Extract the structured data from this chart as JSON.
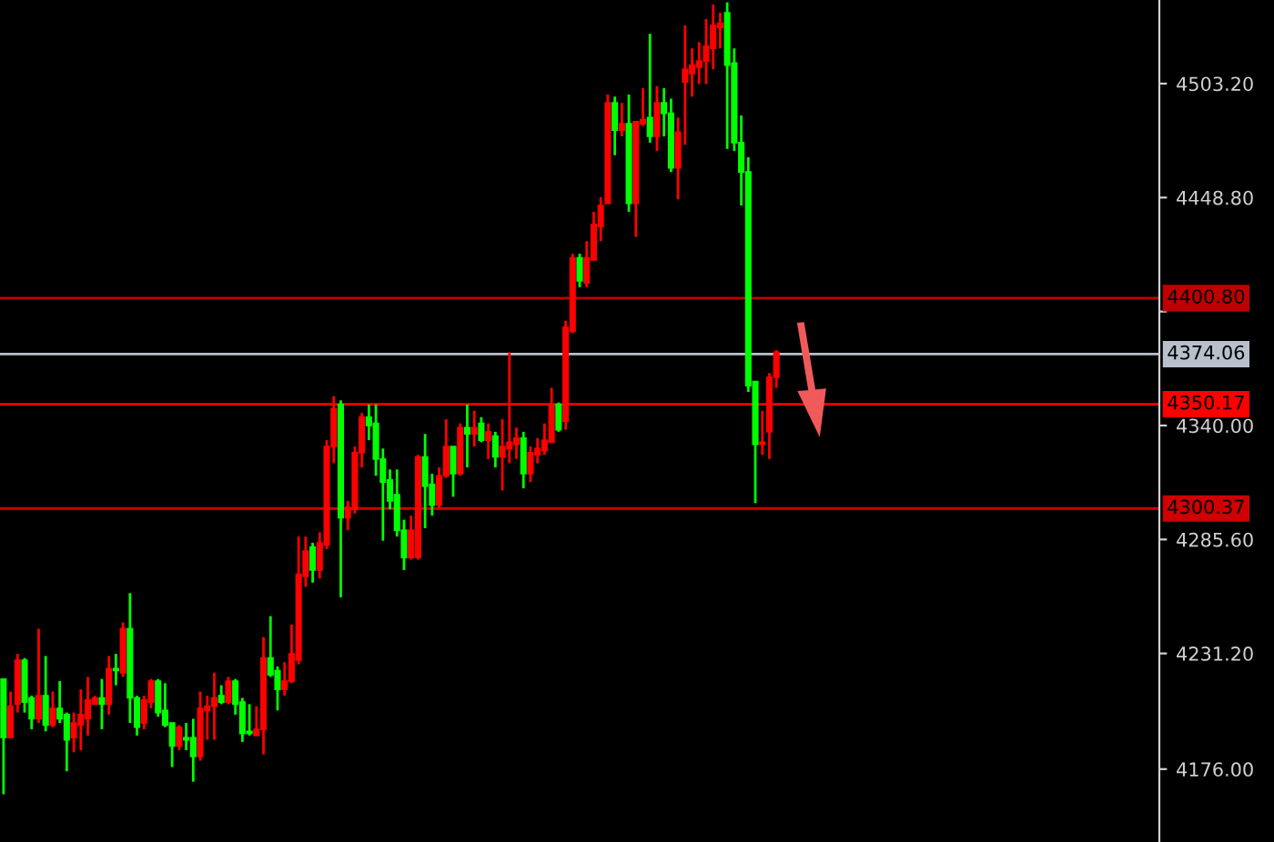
{
  "chart_data": {
    "type": "candlestick",
    "categories": [
      null,
      null,
      null,
      null,
      null,
      null,
      null,
      null,
      null,
      null,
      null,
      null,
      null,
      null,
      null,
      null,
      null,
      null,
      null,
      null,
      null,
      null,
      null,
      null,
      null,
      null,
      null,
      null,
      null,
      null,
      null,
      null,
      null,
      null,
      null,
      null,
      null,
      null,
      null,
      null,
      null,
      null,
      null,
      null,
      null,
      null,
      null,
      null,
      null,
      null,
      null,
      null,
      null,
      null,
      null,
      null,
      null,
      null,
      null,
      null,
      null,
      null,
      null,
      null,
      null,
      null,
      null,
      null,
      null,
      null,
      null,
      null,
      null,
      null,
      null,
      null,
      null,
      null,
      null,
      null,
      null,
      null,
      null,
      null,
      null,
      null,
      null,
      null,
      null,
      null,
      null,
      null,
      null,
      null,
      null,
      null,
      null,
      null,
      null,
      null,
      null,
      null,
      null,
      null,
      null,
      null,
      null,
      null,
      null,
      null,
      null,
      null,
      null,
      null,
      null,
      null,
      null,
      null,
      null,
      null,
      null,
      null,
      null,
      null,
      null,
      null,
      null,
      null,
      null,
      null,
      null,
      null,
      null,
      null,
      null,
      null,
      null,
      null,
      null,
      null,
      null,
      null,
      null,
      null,
      null,
      null,
      null,
      null,
      null,
      null,
      null,
      null,
      null,
      null,
      null,
      null,
      null,
      null,
      null,
      null,
      null,
      null,
      null,
      null,
      null
    ],
    "ohlc": [
      [
        4219,
        4219,
        4164,
        4191
      ],
      [
        4191,
        4213,
        4191,
        4206
      ],
      [
        4207,
        4231,
        4203,
        4228
      ],
      [
        4228,
        4229,
        4203,
        4208
      ],
      [
        4210,
        4211,
        4195,
        4200
      ],
      [
        4200,
        4243,
        4198,
        4211
      ],
      [
        4211,
        4230,
        4194,
        4197
      ],
      [
        4197,
        4213,
        4196,
        4205
      ],
      [
        4205,
        4218,
        4198,
        4200
      ],
      [
        4202,
        4203,
        4175,
        4190
      ],
      [
        4191,
        4203,
        4184,
        4198
      ],
      [
        4197,
        4214,
        4185,
        4202
      ],
      [
        4200,
        4220,
        4192,
        4209
      ],
      [
        4207,
        4211,
        4207,
        4210
      ],
      [
        4210,
        4219,
        4195,
        4207
      ],
      [
        4207,
        4230,
        4202,
        4224
      ],
      [
        4224,
        4231,
        4216,
        4223
      ],
      [
        4222,
        4246,
        4220,
        4243
      ],
      [
        4243,
        4260,
        4198,
        4210
      ],
      [
        4210,
        4211,
        4192,
        4196
      ],
      [
        4198,
        4211,
        4195,
        4209
      ],
      [
        4208,
        4219,
        4205,
        4218
      ],
      [
        4218,
        4219,
        4201,
        4203
      ],
      [
        4204,
        4217,
        4196,
        4197
      ],
      [
        4198,
        4198,
        4177,
        4187
      ],
      [
        4187,
        4197,
        4185,
        4196
      ],
      [
        4191,
        4198,
        4185,
        4190
      ],
      [
        4191,
        4200,
        4170,
        4182
      ],
      [
        4182,
        4213,
        4180,
        4205
      ],
      [
        4204,
        4211,
        4190,
        4206
      ],
      [
        4206,
        4222,
        4190,
        4210
      ],
      [
        4211,
        4216,
        4207,
        4208
      ],
      [
        4208,
        4220,
        4207,
        4218
      ],
      [
        4218,
        4219,
        4202,
        4207
      ],
      [
        4208,
        4210,
        4189,
        4193
      ],
      [
        4194,
        4207,
        4192,
        4193
      ],
      [
        4192,
        4206,
        4192,
        4195
      ],
      [
        4195,
        4239,
        4183,
        4229
      ],
      [
        4229,
        4249,
        4220,
        4221
      ],
      [
        4223,
        4225,
        4204,
        4214
      ],
      [
        4214,
        4227,
        4211,
        4218
      ],
      [
        4218,
        4245,
        4217,
        4231
      ],
      [
        4228,
        4287,
        4226,
        4269
      ],
      [
        4268,
        4287,
        4263,
        4280
      ],
      [
        4282,
        4284,
        4265,
        4271
      ],
      [
        4271,
        4289,
        4267,
        4284
      ],
      [
        4283,
        4333,
        4281,
        4330
      ],
      [
        4330,
        4354,
        4322,
        4348
      ],
      [
        4350,
        4352,
        4258,
        4296
      ],
      [
        4296,
        4304,
        4290,
        4301
      ],
      [
        4300,
        4330,
        4298,
        4327
      ],
      [
        4327,
        4346,
        4320,
        4344
      ],
      [
        4344,
        4350,
        4333,
        4340
      ],
      [
        4341,
        4350,
        4316,
        4324
      ],
      [
        4324,
        4329,
        4285,
        4313
      ],
      [
        4314,
        4319,
        4300,
        4304
      ],
      [
        4307,
        4319,
        4287,
        4290
      ],
      [
        4290,
        4295,
        4271,
        4277
      ],
      [
        4277,
        4297,
        4276,
        4290
      ],
      [
        4277,
        4326,
        4276,
        4325
      ],
      [
        4325,
        4336,
        4291,
        4311
      ],
      [
        4312,
        4317,
        4297,
        4302
      ],
      [
        4302,
        4320,
        4300,
        4316
      ],
      [
        4316,
        4343,
        4315,
        4330
      ],
      [
        4330,
        4330,
        4306,
        4317
      ],
      [
        4317,
        4341,
        4316,
        4339
      ],
      [
        4339,
        4350,
        4320,
        4336
      ],
      [
        4336,
        4347,
        4330,
        4339
      ],
      [
        4341,
        4344,
        4332,
        4333
      ],
      [
        4333,
        4341,
        4324,
        4337
      ],
      [
        4335,
        4337,
        4320,
        4325
      ],
      [
        4325,
        4343,
        4309,
        4330
      ],
      [
        4329,
        4375,
        4322,
        4332
      ],
      [
        4331,
        4339,
        4324,
        4334
      ],
      [
        4334,
        4337,
        4310,
        4317
      ],
      [
        4317,
        4330,
        4313,
        4327
      ],
      [
        4326,
        4334,
        4322,
        4329
      ],
      [
        4328,
        4341,
        4326,
        4333
      ],
      [
        4332,
        4358,
        4332,
        4350
      ],
      [
        4350,
        4351,
        4337,
        4338
      ],
      [
        4342,
        4390,
        4338,
        4387
      ],
      [
        4385,
        4422,
        4384,
        4420
      ],
      [
        4420,
        4422,
        4406,
        4409
      ],
      [
        4408,
        4428,
        4406,
        4420
      ],
      [
        4419,
        4442,
        4419,
        4436
      ],
      [
        4435,
        4449,
        4428,
        4445
      ],
      [
        4446,
        4498,
        4446,
        4494
      ],
      [
        4494,
        4497,
        4469,
        4481
      ],
      [
        4481,
        4494,
        4478,
        4484
      ],
      [
        4484,
        4498,
        4442,
        4446
      ],
      [
        4446,
        4485,
        4430,
        4485
      ],
      [
        4484,
        4501,
        4483,
        4486
      ],
      [
        4487,
        4527,
        4475,
        4478
      ],
      [
        4478,
        4502,
        4471,
        4494
      ],
      [
        4494,
        4501,
        4478,
        4489
      ],
      [
        4489,
        4496,
        4461,
        4463
      ],
      [
        4463,
        4487,
        4448,
        4480
      ],
      [
        4504,
        4531,
        4474,
        4510
      ],
      [
        4508,
        4520,
        4497,
        4512
      ],
      [
        4511,
        4523,
        4503,
        4514
      ],
      [
        4514,
        4534,
        4503,
        4521
      ],
      [
        4520,
        4541,
        4510,
        4531
      ],
      [
        4530,
        4537,
        4520,
        4532
      ],
      [
        4537,
        4542,
        4472,
        4512
      ],
      [
        4513,
        4520,
        4471,
        4475
      ],
      [
        4475,
        4488,
        4445,
        4461
      ],
      [
        4461,
        4468,
        4356,
        4359
      ],
      [
        4361,
        4361,
        4303,
        4331
      ],
      [
        4331,
        4347,
        4326,
        4332
      ],
      [
        4337,
        4365,
        4324,
        4363
      ],
      [
        4363,
        4376,
        4358,
        4375
      ],
      null,
      null,
      null,
      null,
      null,
      null,
      null,
      null,
      null,
      null,
      null,
      null,
      null,
      null,
      null,
      null,
      null,
      null,
      null,
      null,
      null,
      null,
      null,
      null,
      null,
      null,
      null,
      null,
      null,
      null,
      null,
      null,
      null,
      null,
      null,
      null,
      null,
      null,
      null,
      null,
      null,
      null,
      null,
      null,
      null,
      null,
      null,
      null,
      null,
      null,
      null,
      null,
      null,
      null
    ],
    "ylim": [
      4141.2,
      4543.1
    ],
    "yticks": [
      {
        "value": 4176.0,
        "label": "4176.00"
      },
      {
        "value": 4231.2,
        "label": "4231.20"
      },
      {
        "value": 4285.6,
        "label": "4285.60"
      },
      {
        "value": 4340.0,
        "label": "4340.00"
      },
      {
        "value": 4394.4,
        "label": null
      },
      {
        "value": 4448.8,
        "label": "4448.80"
      },
      {
        "value": 4503.2,
        "label": "4503.20"
      }
    ],
    "tick_labels": "y",
    "grid": false,
    "ref_lines": [
      {
        "axis": "y",
        "value": 4400.8,
        "label": "4400.80",
        "color": "#c00000"
      },
      {
        "axis": "y",
        "value": 4374.06,
        "label": "4374.06",
        "color": "#b8c0cc"
      },
      {
        "axis": "y",
        "value": 4350.17,
        "label": "4350.17",
        "color": "#ff0000"
      },
      {
        "axis": "y",
        "value": 4300.37,
        "label": "4300.37",
        "color": "#d00000"
      }
    ]
  }
}
